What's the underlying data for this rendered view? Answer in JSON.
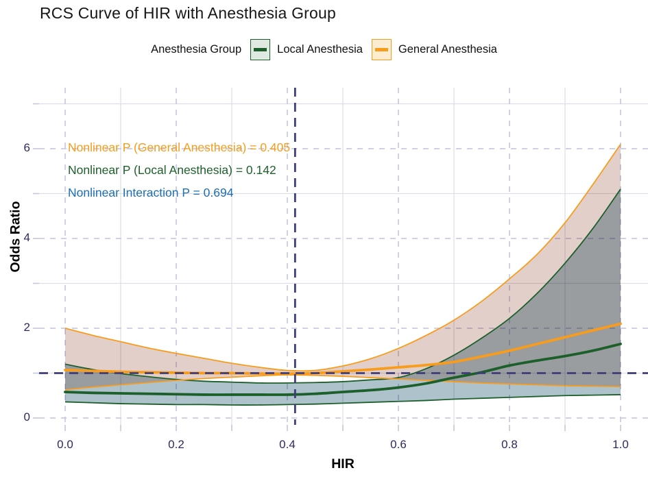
{
  "legend": {
    "label": "Anesthesia Group",
    "items": [
      {
        "label": "Local Anesthesia",
        "line_color": "#1d5f2a",
        "box_fill": "#dfe9e1"
      },
      {
        "label": "General Anesthesia",
        "line_color": "#f79c1c",
        "box_fill": "#fdeccf"
      }
    ]
  },
  "axes": {
    "x_label": "HIR",
    "y_label": "Odds Ratio",
    "x_tick_labels": [
      "0.0",
      "0.2",
      "0.4",
      "0.6",
      "0.8",
      "1.0"
    ],
    "y_tick_labels": [
      "0",
      "2",
      "4",
      "6"
    ],
    "tick_text_color": "#2b2a62"
  },
  "chart_data": {
    "type": "line",
    "title": "RCS Curve of HIR with Anesthesia Group",
    "xlabel": "HIR",
    "ylabel": "Odds Ratio",
    "xlim": [
      -0.05,
      1.05
    ],
    "ylim": [
      -0.15,
      7.36
    ],
    "x_major_ticks": [
      0.0,
      0.2,
      0.4,
      0.6,
      0.8,
      1.0
    ],
    "x_minor_ticks": [
      0.1,
      0.3,
      0.5,
      0.7,
      0.9
    ],
    "y_major_ticks": [
      0,
      2,
      4,
      6
    ],
    "y_minor_ticks": [
      1,
      3,
      5,
      7
    ],
    "grid": {
      "major_color": "#c9c9e2",
      "minor_color": "#dedeeb"
    },
    "reference_lines": {
      "horizontal_y": 1.0,
      "vertical_x": 0.414,
      "color": "#3d3d78"
    },
    "x": [
      0,
      0.05,
      0.1,
      0.15,
      0.2,
      0.25,
      0.3,
      0.35,
      0.4,
      0.45,
      0.5,
      0.55,
      0.6,
      0.65,
      0.7,
      0.75,
      0.8,
      0.85,
      0.9,
      0.95,
      1.0
    ],
    "series": [
      {
        "name": "Local Anesthesia",
        "color": "#1d5f2a",
        "fill": "#adc2cb",
        "center": [
          0.58,
          0.56,
          0.55,
          0.54,
          0.53,
          0.52,
          0.52,
          0.52,
          0.52,
          0.54,
          0.58,
          0.62,
          0.68,
          0.77,
          0.9,
          1.02,
          1.17,
          1.28,
          1.38,
          1.5,
          1.65
        ],
        "upper": [
          1.2,
          1.08,
          0.99,
          0.92,
          0.86,
          0.82,
          0.8,
          0.78,
          0.78,
          0.79,
          0.81,
          0.85,
          0.9,
          1.1,
          1.4,
          1.78,
          2.22,
          2.78,
          3.45,
          4.22,
          5.1
        ],
        "lower": [
          0.36,
          0.34,
          0.32,
          0.31,
          0.3,
          0.3,
          0.29,
          0.29,
          0.3,
          0.31,
          0.33,
          0.35,
          0.37,
          0.39,
          0.42,
          0.44,
          0.46,
          0.48,
          0.5,
          0.51,
          0.52
        ]
      },
      {
        "name": "General Anesthesia",
        "color": "#f79c1c",
        "fill": "#e3cfc9",
        "center": [
          1.07,
          1.05,
          1.03,
          1.02,
          1.01,
          1.0,
          1.0,
          0.99,
          0.99,
          1.0,
          1.04,
          1.08,
          1.13,
          1.18,
          1.25,
          1.37,
          1.5,
          1.65,
          1.8,
          1.95,
          2.1
        ],
        "upper": [
          2.0,
          1.84,
          1.7,
          1.56,
          1.44,
          1.33,
          1.22,
          1.13,
          1.06,
          1.06,
          1.16,
          1.32,
          1.55,
          1.84,
          2.18,
          2.6,
          3.1,
          3.65,
          4.35,
          5.2,
          6.1
        ],
        "lower": [
          0.63,
          0.69,
          0.74,
          0.79,
          0.84,
          0.88,
          0.91,
          0.94,
          0.96,
          0.95,
          0.93,
          0.9,
          0.87,
          0.84,
          0.81,
          0.78,
          0.76,
          0.74,
          0.72,
          0.71,
          0.7
        ]
      }
    ],
    "annotations": [
      {
        "text": "Nonlinear P (General Anesthesia) = 0.405",
        "color": "#f79c1c"
      },
      {
        "text": "Nonlinear P (Local Anesthesia) = 0.142",
        "color": "#1d5f2a"
      },
      {
        "text": "Nonlinear Interaction P = 0.694",
        "color": "#1d6fb5"
      }
    ],
    "legend_position": "top"
  }
}
